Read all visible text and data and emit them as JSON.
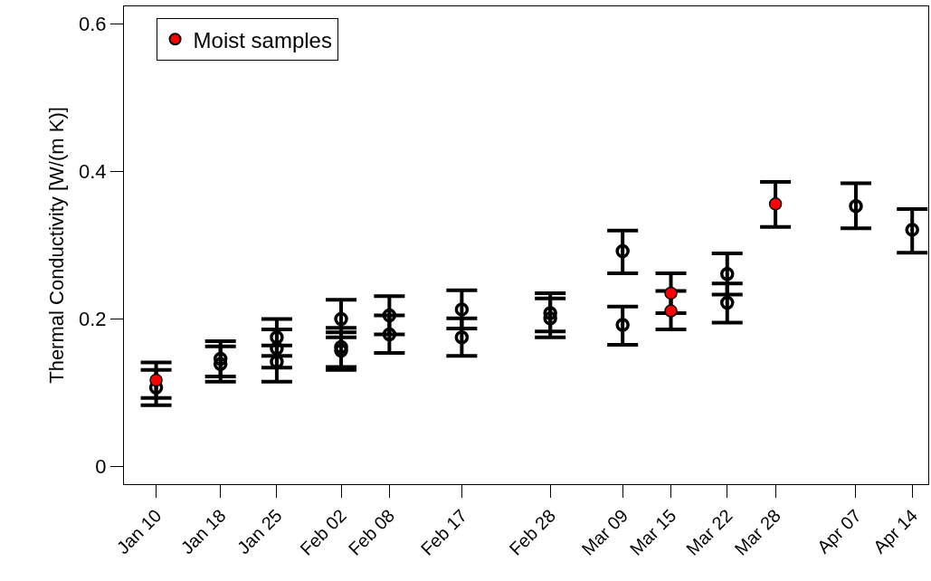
{
  "chart_data": {
    "type": "scatter",
    "ylabel": "Thermal Conductivity [W/(m K)]",
    "xlim": [
      "--01-06",
      "--04-16"
    ],
    "xticks": [
      {
        "value": "--01-10",
        "label": "Jan 10"
      },
      {
        "value": "--01-18",
        "label": "Jan 18"
      },
      {
        "value": "--01-25",
        "label": "Jan 25"
      },
      {
        "value": "--02-02",
        "label": "Feb 02"
      },
      {
        "value": "--02-08",
        "label": "Feb 08"
      },
      {
        "value": "--02-17",
        "label": "Feb 17"
      },
      {
        "value": "--02-28",
        "label": "Feb 28"
      },
      {
        "value": "--03-09",
        "label": "Mar 09"
      },
      {
        "value": "--03-15",
        "label": "Mar 15"
      },
      {
        "value": "--03-22",
        "label": "Mar 22"
      },
      {
        "value": "--03-28",
        "label": "Mar 28"
      },
      {
        "value": "--04-07",
        "label": "Apr 07"
      },
      {
        "value": "--04-14",
        "label": "Apr 14"
      }
    ],
    "ylim": [
      -0.024,
      0.624
    ],
    "yticks": [
      0,
      0.2,
      0.4,
      0.6
    ],
    "legend": "top left",
    "marker": "circle",
    "series": [
      {
        "color": "#000000",
        "x": [
          "--01-10",
          "--01-18",
          "--01-18",
          "--01-25",
          "--01-25",
          "--01-25",
          "--02-02",
          "--02-02",
          "--02-02",
          "--02-08",
          "--02-08",
          "--02-17",
          "--02-17",
          "--02-28",
          "--02-28",
          "--03-09",
          "--03-09",
          "--03-22",
          "--03-22",
          "--04-07",
          "--04-14"
        ],
        "values": [
          0.107,
          0.146,
          0.139,
          0.175,
          0.16,
          0.142,
          0.2,
          0.162,
          0.157,
          0.205,
          0.179,
          0.213,
          0.175,
          0.208,
          0.201,
          0.292,
          0.192,
          0.261,
          0.222,
          0.353,
          0.321
        ],
        "errors": [
          [
            0.083,
            0.131
          ],
          [
            0.122,
            0.17
          ],
          [
            0.115,
            0.163
          ],
          [
            0.15,
            0.2
          ],
          [
            0.134,
            0.186
          ],
          [
            0.115,
            0.164
          ],
          [
            0.175,
            0.226
          ],
          [
            0.135,
            0.188
          ],
          [
            0.131,
            0.182
          ],
          [
            0.179,
            0.231
          ],
          [
            0.154,
            0.205
          ],
          [
            0.187,
            0.239
          ],
          [
            0.15,
            0.201
          ],
          [
            0.183,
            0.235
          ],
          [
            0.175,
            0.228
          ],
          [
            0.262,
            0.32
          ],
          [
            0.165,
            0.217
          ],
          [
            0.233,
            0.289
          ],
          [
            0.195,
            0.248
          ],
          [
            0.323,
            0.384
          ],
          [
            0.29,
            0.349
          ]
        ]
      },
      {
        "name": "Moist samples",
        "color": "#ff0000",
        "x": [
          "--01-10",
          "--03-15",
          "--03-15",
          "--03-28"
        ],
        "values": [
          0.117,
          0.235,
          0.211,
          0.356
        ],
        "errors": [
          [
            0.093,
            0.141
          ],
          [
            0.208,
            0.262
          ],
          [
            0.186,
            0.238
          ],
          [
            0.325,
            0.386
          ]
        ]
      }
    ]
  }
}
